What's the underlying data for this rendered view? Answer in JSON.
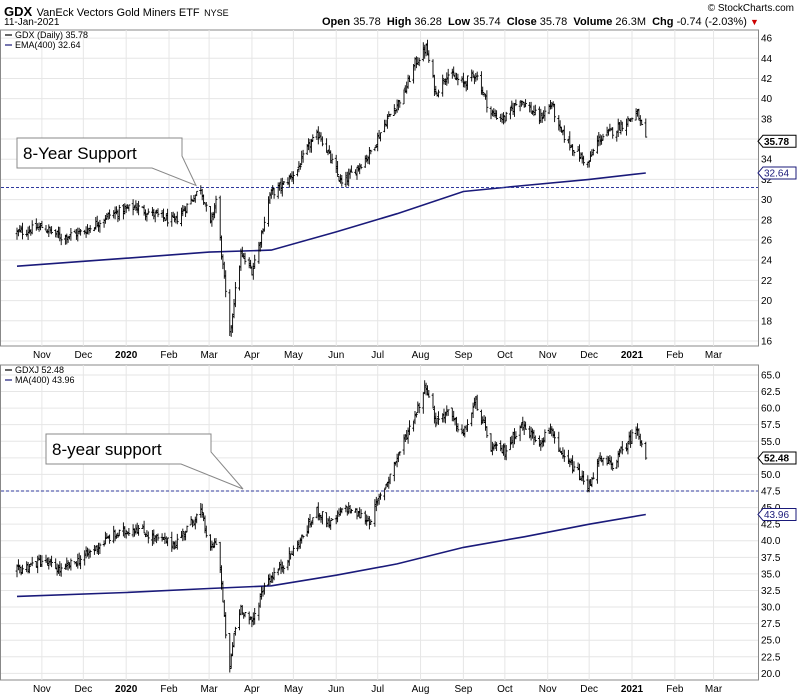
{
  "header": {
    "symbol": "GDX",
    "name": "VanEck Vectors Gold Miners ETF",
    "exchange": "NYSE",
    "date": "11-Jan-2021",
    "open_label": "Open",
    "open": "35.78",
    "high_label": "High",
    "high": "36.28",
    "low_label": "Low",
    "low": "35.74",
    "close_label": "Close",
    "close": "35.78",
    "volume_label": "Volume",
    "volume": "26.3M",
    "chg_label": "Chg",
    "chg": "-0.74 (-2.03%)",
    "watermark": "© StockCharts.com"
  },
  "colors": {
    "price_bars": "#000000",
    "moving_average": "#1a1a7a",
    "support_line": "#2f3a9e",
    "badge_price": "#000000",
    "badge_ma": "#1a1a7a",
    "grid": "#e6e6e6",
    "change_down": "#cc0000"
  },
  "chart_data": [
    {
      "type": "ohlc",
      "legend": [
        "GDX (Daily) 35.78",
        "EMA(400) 32.64"
      ],
      "annotation": "8-Year Support",
      "support_level": 31.2,
      "last_price_badge": "35.78",
      "ma_badge": "32.64",
      "yticks": [
        16,
        18,
        20,
        22,
        24,
        26,
        28,
        30,
        32,
        34,
        36,
        38,
        40,
        42,
        44,
        46
      ],
      "ylim": [
        15.5,
        46.8
      ],
      "grid": true,
      "xticks": [
        "Nov",
        "Dec",
        "2020",
        "Feb",
        "Mar",
        "Apr",
        "May",
        "Jun",
        "Jul",
        "Aug",
        "Sep",
        "Oct",
        "Nov",
        "Dec",
        "2021",
        "Feb",
        "Mar"
      ],
      "price_path": [
        [
          "2019-10-14",
          26.7
        ],
        [
          "2019-11-01",
          27.3
        ],
        [
          "2019-11-15",
          26.3
        ],
        [
          "2019-12-01",
          26.8
        ],
        [
          "2019-12-20",
          28.5
        ],
        [
          "2020-01-08",
          29.3
        ],
        [
          "2020-01-20",
          28.6
        ],
        [
          "2020-02-05",
          27.8
        ],
        [
          "2020-02-24",
          31.2
        ],
        [
          "2020-03-02",
          27.5
        ],
        [
          "2020-03-06",
          30.0
        ],
        [
          "2020-03-09",
          26.0
        ],
        [
          "2020-03-12",
          22.0
        ],
        [
          "2020-03-16",
          16.5
        ],
        [
          "2020-03-19",
          20.0
        ],
        [
          "2020-03-24",
          24.5
        ],
        [
          "2020-04-01",
          23.0
        ],
        [
          "2020-04-07",
          26.0
        ],
        [
          "2020-04-14",
          30.5
        ],
        [
          "2020-04-24",
          31.5
        ],
        [
          "2020-05-04",
          33.0
        ],
        [
          "2020-05-13",
          35.5
        ],
        [
          "2020-05-20",
          36.5
        ],
        [
          "2020-05-28",
          34.0
        ],
        [
          "2020-06-05",
          31.5
        ],
        [
          "2020-06-15",
          33.0
        ],
        [
          "2020-06-25",
          34.5
        ],
        [
          "2020-07-08",
          38.0
        ],
        [
          "2020-07-20",
          40.5
        ],
        [
          "2020-07-28",
          43.5
        ],
        [
          "2020-08-05",
          45.0
        ],
        [
          "2020-08-12",
          40.5
        ],
        [
          "2020-08-20",
          42.5
        ],
        [
          "2020-09-01",
          41.5
        ],
        [
          "2020-09-10",
          42.5
        ],
        [
          "2020-09-21",
          38.5
        ],
        [
          "2020-10-01",
          38.0
        ],
        [
          "2020-10-12",
          40.0
        ],
        [
          "2020-10-26",
          38.0
        ],
        [
          "2020-11-04",
          39.5
        ],
        [
          "2020-11-09",
          37.0
        ],
        [
          "2020-11-20",
          35.0
        ],
        [
          "2020-11-30",
          33.5
        ],
        [
          "2020-12-08",
          36.0
        ],
        [
          "2020-12-18",
          36.8
        ],
        [
          "2021-01-05",
          38.5
        ],
        [
          "2021-01-11",
          35.8
        ]
      ],
      "ma_path": [
        [
          "2019-10-14",
          23.4
        ],
        [
          "2020-01-01",
          24.2
        ],
        [
          "2020-03-01",
          24.8
        ],
        [
          "2020-04-15",
          25.0
        ],
        [
          "2020-06-01",
          26.8
        ],
        [
          "2020-07-15",
          28.6
        ],
        [
          "2020-09-01",
          30.8
        ],
        [
          "2020-10-15",
          31.4
        ],
        [
          "2020-12-01",
          32.0
        ],
        [
          "2021-01-11",
          32.64
        ]
      ]
    },
    {
      "type": "ohlc",
      "legend": [
        "GDXJ 52.48",
        "MA(400) 43.96"
      ],
      "annotation": "8-year support",
      "support_level": 47.5,
      "last_price_badge": "52.48",
      "ma_badge": "43.96",
      "yticks": [
        20.0,
        22.5,
        25.0,
        27.5,
        30.0,
        32.5,
        35.0,
        37.5,
        40.0,
        42.5,
        45.0,
        47.5,
        50.0,
        52.5,
        55.0,
        57.5,
        60.0,
        62.5,
        65.0
      ],
      "ylim": [
        19.0,
        66.5
      ],
      "grid": true,
      "xticks": [
        "Nov",
        "Dec",
        "2020",
        "Feb",
        "Mar",
        "Apr",
        "May",
        "Jun",
        "Jul",
        "Aug",
        "Sep",
        "Oct",
        "Nov",
        "Dec",
        "2021",
        "Feb",
        "Mar"
      ],
      "price_path": [
        [
          "2019-10-14",
          35.5
        ],
        [
          "2019-11-01",
          37.0
        ],
        [
          "2019-11-15",
          35.5
        ],
        [
          "2019-12-01",
          37.5
        ],
        [
          "2019-12-20",
          40.5
        ],
        [
          "2020-01-08",
          42.0
        ],
        [
          "2020-01-20",
          40.5
        ],
        [
          "2020-02-05",
          39.5
        ],
        [
          "2020-02-24",
          44.5
        ],
        [
          "2020-03-02",
          38.5
        ],
        [
          "2020-03-06",
          40.0
        ],
        [
          "2020-03-09",
          36.0
        ],
        [
          "2020-03-12",
          28.0
        ],
        [
          "2020-03-16",
          20.5
        ],
        [
          "2020-03-19",
          26.0
        ],
        [
          "2020-03-24",
          30.0
        ],
        [
          "2020-04-01",
          27.5
        ],
        [
          "2020-04-10",
          33.5
        ],
        [
          "2020-04-24",
          36.5
        ],
        [
          "2020-05-06",
          40.0
        ],
        [
          "2020-05-18",
          44.5
        ],
        [
          "2020-05-28",
          42.5
        ],
        [
          "2020-06-08",
          45.0
        ],
        [
          "2020-06-25",
          43.0
        ],
        [
          "2020-07-08",
          49.0
        ],
        [
          "2020-07-20",
          55.0
        ],
        [
          "2020-07-28",
          59.0
        ],
        [
          "2020-08-05",
          63.5
        ],
        [
          "2020-08-12",
          58.0
        ],
        [
          "2020-08-20",
          59.5
        ],
        [
          "2020-09-01",
          56.0
        ],
        [
          "2020-09-10",
          61.0
        ],
        [
          "2020-09-21",
          54.0
        ],
        [
          "2020-10-01",
          53.5
        ],
        [
          "2020-10-12",
          57.5
        ],
        [
          "2020-10-26",
          55.0
        ],
        [
          "2020-11-04",
          57.0
        ],
        [
          "2020-11-09",
          53.0
        ],
        [
          "2020-11-20",
          51.0
        ],
        [
          "2020-11-30",
          48.0
        ],
        [
          "2020-12-08",
          52.0
        ],
        [
          "2020-12-18",
          51.5
        ],
        [
          "2021-01-05",
          57.0
        ],
        [
          "2021-01-11",
          52.5
        ]
      ],
      "ma_path": [
        [
          "2019-10-14",
          31.6
        ],
        [
          "2020-01-01",
          32.2
        ],
        [
          "2020-03-01",
          32.8
        ],
        [
          "2020-04-15",
          33.2
        ],
        [
          "2020-06-01",
          34.8
        ],
        [
          "2020-07-15",
          36.5
        ],
        [
          "2020-09-01",
          39.0
        ],
        [
          "2020-10-15",
          40.6
        ],
        [
          "2020-12-01",
          42.5
        ],
        [
          "2021-01-11",
          43.96
        ]
      ]
    }
  ]
}
